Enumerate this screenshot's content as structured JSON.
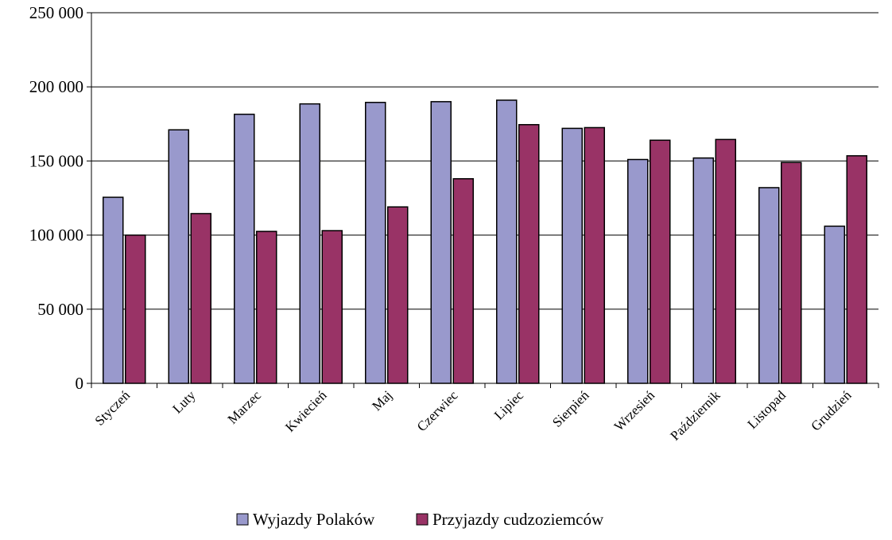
{
  "chart_data": {
    "type": "bar",
    "title": "",
    "xlabel": "",
    "ylabel": "",
    "ylim": [
      0,
      250000
    ],
    "yticks": [
      0,
      50000,
      100000,
      150000,
      200000,
      250000
    ],
    "ytick_labels": [
      "0",
      "50 000",
      "100 000",
      "150 000",
      "200 000",
      "250 000"
    ],
    "grid": true,
    "legend_position": "bottom",
    "categories": [
      "Styczeń",
      "Luty",
      "Marzec",
      "Kwiecień",
      "Maj",
      "Czerwiec",
      "Lipiec",
      "Sierpień",
      "Wrzesień",
      "Październik",
      "Listopad",
      "Grudzień"
    ],
    "series": [
      {
        "name": "Wyjazdy Polaków",
        "color": "#9999cc",
        "values": [
          125500,
          171000,
          181500,
          188500,
          189500,
          190000,
          191000,
          172000,
          151000,
          152000,
          132000,
          106000
        ]
      },
      {
        "name": "Przyjazdy cudzoziemców",
        "color": "#993366",
        "values": [
          100000,
          114500,
          102500,
          103000,
          119000,
          138000,
          174500,
          172500,
          164000,
          164500,
          149000,
          153500
        ]
      }
    ]
  }
}
